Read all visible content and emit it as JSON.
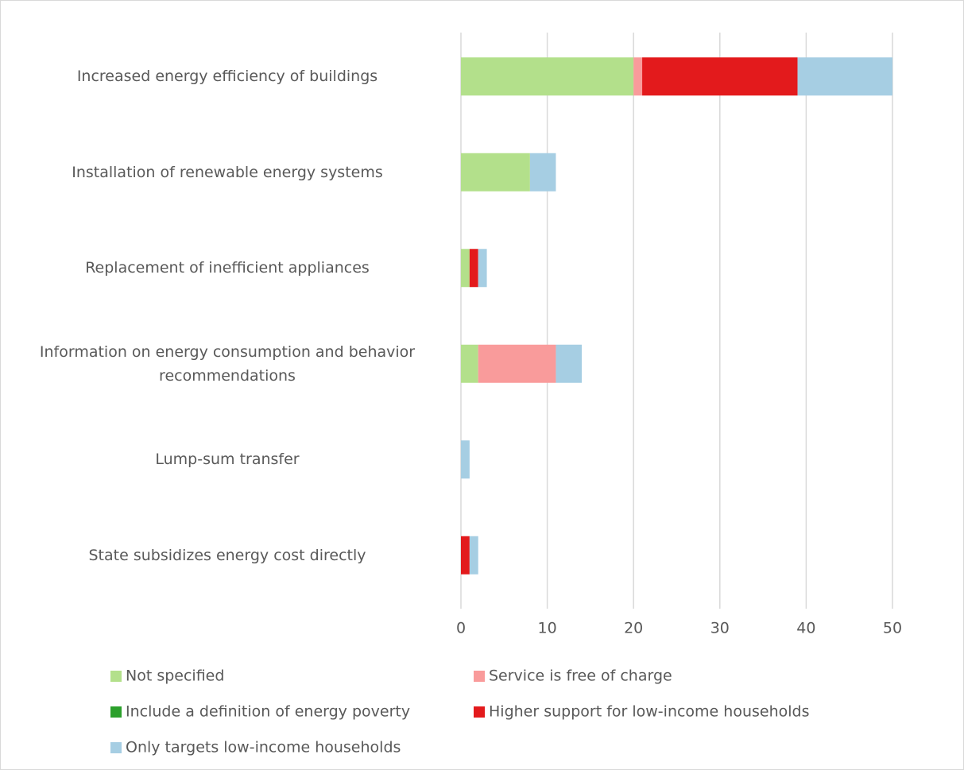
{
  "chart_data": {
    "type": "stacked_barh",
    "categories": [
      "Increased energy efficiency of buildings",
      "Installation of renewable energy systems",
      "Replacement of inefficient appliances",
      "Information on energy consumption and behavior recommendations",
      "Lump-sum transfer",
      "State subsidizes energy cost directly"
    ],
    "series": [
      {
        "name": "Not specified",
        "color": "#b3e08b",
        "values": [
          20,
          8,
          1,
          2,
          0,
          0
        ]
      },
      {
        "name": "Service is free of charge",
        "color": "#f99b9b",
        "values": [
          1,
          0,
          0,
          9,
          0,
          0
        ]
      },
      {
        "name": "Include a definition of energy poverty",
        "color": "#2ca02c",
        "values": [
          0,
          0,
          0,
          0,
          0,
          0
        ]
      },
      {
        "name": "Higher support for low-income households",
        "color": "#e31a1c",
        "values": [
          18,
          0,
          1,
          0,
          0,
          1
        ]
      },
      {
        "name": "Only targets low-income households",
        "color": "#a6cee3",
        "values": [
          11,
          3,
          1,
          3,
          1,
          1
        ]
      }
    ],
    "xlim": [
      0,
      50
    ],
    "xticks": [
      0,
      10,
      20,
      30,
      40,
      50
    ],
    "grid": true,
    "legend": "bottom"
  }
}
